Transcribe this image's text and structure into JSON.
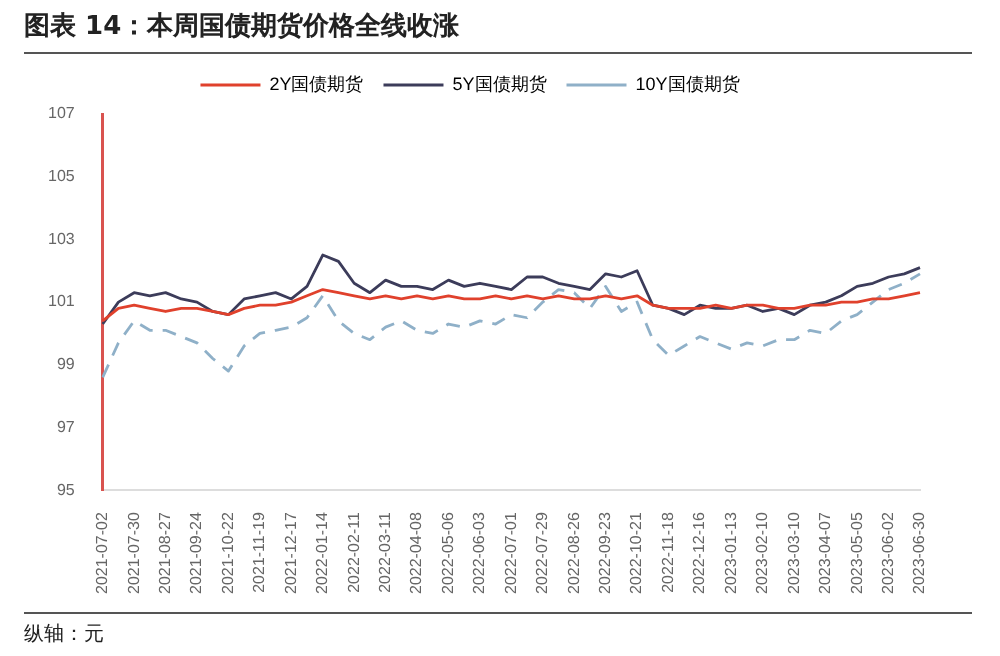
{
  "chart_data": {
    "type": "line",
    "title": "图表 14：本周国债期货价格全线收涨",
    "annotations": [
      "纵轴：元"
    ],
    "categories": [
      "2021-07-02",
      null,
      "2021-07-30",
      null,
      "2021-08-27",
      null,
      "2021-09-24",
      null,
      "2021-10-22",
      null,
      "2021-11-19",
      null,
      "2021-12-17",
      null,
      "2022-01-14",
      null,
      "2022-02-11",
      null,
      "2022-03-11",
      null,
      "2022-04-08",
      null,
      "2022-05-06",
      null,
      "2022-06-03",
      null,
      "2022-07-01",
      null,
      "2022-07-29",
      null,
      "2022-08-26",
      null,
      "2022-09-23",
      null,
      "2022-10-21",
      null,
      "2022-11-18",
      null,
      "2022-12-16",
      null,
      "2023-01-13",
      null,
      "2023-02-10",
      null,
      "2023-03-10",
      null,
      "2023-04-07",
      null,
      "2023-05-05",
      null,
      "2023-06-02",
      null,
      "2023-06-30"
    ],
    "series": [
      {
        "name": "2Y国债期货",
        "color": "#e0412c",
        "line_style": "solid",
        "values": [
          100.4,
          100.8,
          100.9,
          100.8,
          100.7,
          100.8,
          100.8,
          100.7,
          100.6,
          100.8,
          100.9,
          100.9,
          101.0,
          101.2,
          101.4,
          101.3,
          101.2,
          101.1,
          101.2,
          101.1,
          101.2,
          101.1,
          101.2,
          101.1,
          101.1,
          101.2,
          101.1,
          101.2,
          101.1,
          101.2,
          101.1,
          101.1,
          101.2,
          101.1,
          101.2,
          100.9,
          100.8,
          100.8,
          100.8,
          100.9,
          100.8,
          100.9,
          100.9,
          100.8,
          100.8,
          100.9,
          100.9,
          101.0,
          101.0,
          101.1,
          101.1,
          101.2,
          101.3
        ]
      },
      {
        "name": "5Y国债期货",
        "color": "#3c3c5a",
        "line_style": "solid",
        "values": [
          100.3,
          101.0,
          101.3,
          101.2,
          101.3,
          101.1,
          101.0,
          100.7,
          100.6,
          101.1,
          101.2,
          101.3,
          101.1,
          101.5,
          102.5,
          102.3,
          101.6,
          101.3,
          101.7,
          101.5,
          101.5,
          101.4,
          101.7,
          101.5,
          101.6,
          101.5,
          101.4,
          101.8,
          101.8,
          101.6,
          101.5,
          101.4,
          101.9,
          101.8,
          102.0,
          100.9,
          100.8,
          100.6,
          100.9,
          100.8,
          100.8,
          100.9,
          100.7,
          100.8,
          100.6,
          100.9,
          101.0,
          101.2,
          101.5,
          101.6,
          101.8,
          101.9,
          102.1
        ]
      },
      {
        "name": "10Y国债期货",
        "color": "#8fb0c8",
        "line_style": "dashed",
        "values": [
          98.6,
          99.7,
          100.4,
          100.1,
          100.1,
          99.9,
          99.7,
          99.2,
          98.8,
          99.6,
          100.0,
          100.1,
          100.2,
          100.5,
          101.2,
          100.4,
          100.0,
          99.8,
          100.2,
          100.4,
          100.1,
          100.0,
          100.3,
          100.2,
          100.4,
          100.3,
          100.6,
          100.5,
          101.0,
          101.4,
          101.3,
          100.8,
          101.5,
          100.7,
          101.0,
          99.8,
          99.3,
          99.6,
          99.9,
          99.7,
          99.5,
          99.7,
          99.6,
          99.8,
          99.8,
          100.1,
          100.0,
          100.4,
          100.6,
          101.0,
          101.4,
          101.6,
          101.9
        ]
      }
    ],
    "ylim": [
      95,
      107
    ],
    "yticks": [
      95,
      97,
      99,
      101,
      103,
      105,
      107
    ],
    "grid": false,
    "legend": "top",
    "marker": "none"
  }
}
